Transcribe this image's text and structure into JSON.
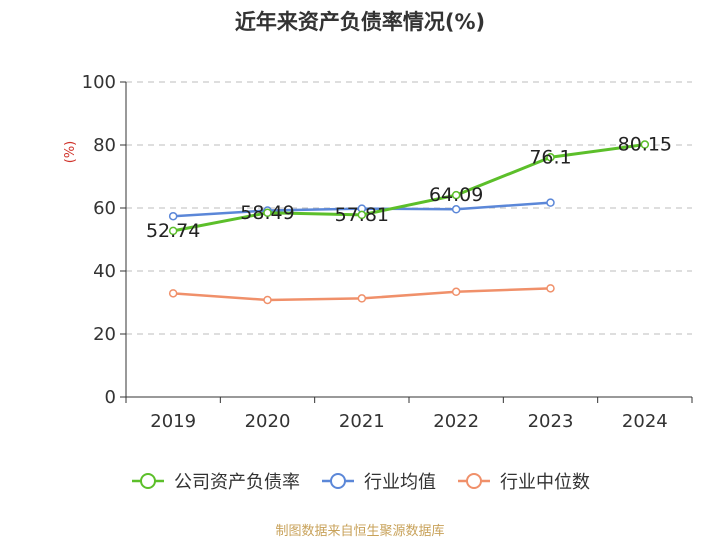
{
  "title": "近年来资产负债率情况(%)",
  "source": "制图数据来自恒生聚源数据库",
  "chart_data": {
    "type": "line",
    "title": "近年来资产负债率情况(%)",
    "ylabel": "(%)",
    "xlabel": "",
    "categories": [
      "2019",
      "2020",
      "2021",
      "2022",
      "2023",
      "2024"
    ],
    "ylim": [
      0,
      100
    ],
    "yticks": [
      "0",
      "20",
      "40",
      "60",
      "80",
      "100"
    ],
    "grid": true,
    "legend_position": "bottom",
    "series": [
      {
        "name": "公司资产负债率",
        "color": "#5cbf2a",
        "values": [
          52.74,
          58.49,
          57.81,
          64.09,
          76.1,
          80.15
        ],
        "labels": [
          "52.74",
          "58.49",
          "57.81",
          "64.09",
          "76.1",
          "80.15"
        ]
      },
      {
        "name": "行业均值",
        "color": "#5b87d8",
        "values": [
          57.4,
          59.2,
          59.8,
          59.6,
          61.7,
          null
        ]
      },
      {
        "name": "行业中位数",
        "color": "#f0906a",
        "values": [
          32.9,
          30.8,
          31.3,
          33.4,
          34.5,
          null
        ]
      }
    ]
  }
}
